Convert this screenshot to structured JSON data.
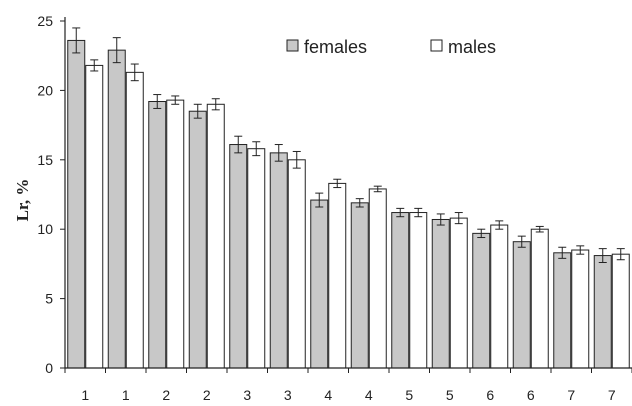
{
  "chart_data": {
    "type": "bar",
    "title": "",
    "xlabel": "",
    "ylabel": "Lr, %",
    "ylim": [
      0,
      25
    ],
    "yticks": [
      0,
      5,
      10,
      15,
      20,
      25
    ],
    "grid": false,
    "legend_position": "top-right",
    "categories": [
      "1",
      "1",
      "2",
      "2",
      "3",
      "3",
      "4",
      "4",
      "5",
      "5",
      "6",
      "6",
      "7",
      "7"
    ],
    "series": [
      {
        "name": "females",
        "color": "#c8c8c8",
        "values": [
          23.6,
          22.9,
          19.2,
          18.5,
          16.1,
          15.5,
          12.1,
          11.9,
          11.2,
          10.7,
          9.7,
          9.1,
          8.3,
          8.1
        ],
        "errors": [
          0.9,
          0.9,
          0.5,
          0.5,
          0.6,
          0.6,
          0.5,
          0.3,
          0.3,
          0.4,
          0.3,
          0.4,
          0.4,
          0.5
        ]
      },
      {
        "name": "males",
        "color": "#ffffff",
        "values": [
          21.8,
          21.3,
          19.3,
          19.0,
          15.8,
          15.0,
          13.3,
          12.9,
          11.2,
          10.8,
          10.3,
          10.0,
          8.5,
          8.2
        ],
        "errors": [
          0.4,
          0.6,
          0.3,
          0.4,
          0.5,
          0.6,
          0.3,
          0.2,
          0.3,
          0.4,
          0.3,
          0.2,
          0.3,
          0.4
        ]
      }
    ]
  }
}
